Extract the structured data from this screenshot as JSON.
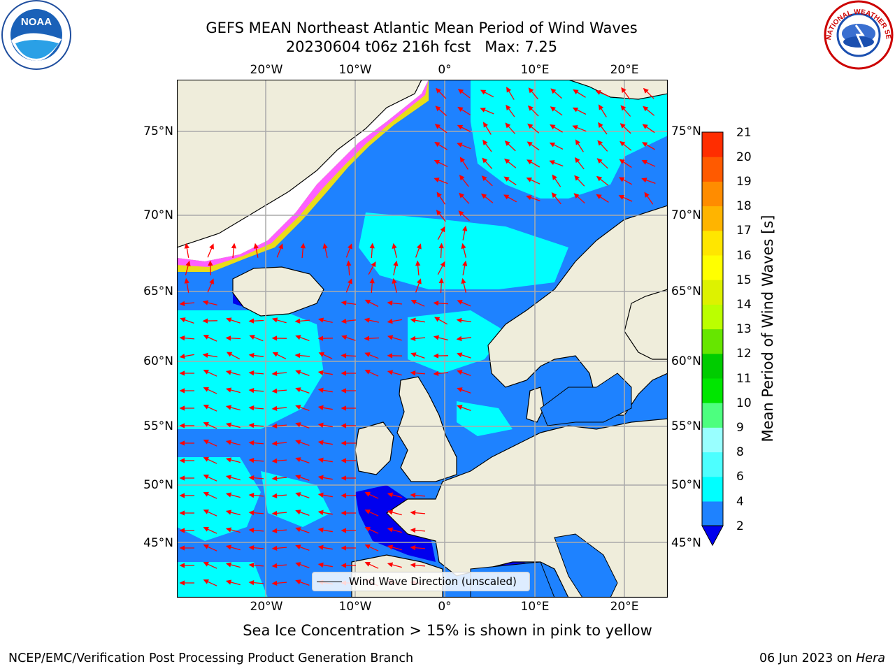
{
  "title": {
    "line1": "GEFS MEAN Northeast Atlantic Mean Period of Wind Waves",
    "line2": "20230604 t06z 216h fcst   Max: 7.25"
  },
  "logos": {
    "left": "NOAA",
    "right": "NATIONAL WEATHER SERVICE"
  },
  "axes": {
    "lon_ticks": [
      "20°W",
      "10°W",
      "0°",
      "10°E",
      "20°E"
    ],
    "lat_ticks": [
      "75°N",
      "70°N",
      "65°N",
      "60°N",
      "55°N",
      "50°N",
      "45°N"
    ]
  },
  "legend": {
    "label": "Wind Wave Direction (unscaled)"
  },
  "colorbar": {
    "label": "Mean Period of Wind Waves [s]",
    "ticks": [
      "2",
      "4",
      "6",
      "8",
      "9",
      "10",
      "11",
      "12",
      "13",
      "14",
      "15",
      "16",
      "17",
      "18",
      "19",
      "20",
      "21"
    ],
    "colors": [
      "#1e82ff",
      "#00ffff",
      "#4dffff",
      "#99ffff",
      "#4dff7f",
      "#00e600",
      "#00cc00",
      "#66e600",
      "#bbff00",
      "#ddf200",
      "#ffff00",
      "#ffe600",
      "#ffb400",
      "#ff8c00",
      "#ff5a00",
      "#ff2d00"
    ],
    "under_color": "#0000ee"
  },
  "map_colors": {
    "land": "#efeddb",
    "ocean": "#1e82ff",
    "ocean_light": "#00ffff",
    "ice_edge": "#ff60ff",
    "arrow": "#ff0000"
  },
  "caption": "Sea Ice Concentration > 15% is shown in pink to yellow",
  "footer": {
    "left": "NCEP/EMC/Verification Post Processing Product Generation Branch",
    "right_date": "06 Jun 2023 on ",
    "right_host": "Hera"
  }
}
